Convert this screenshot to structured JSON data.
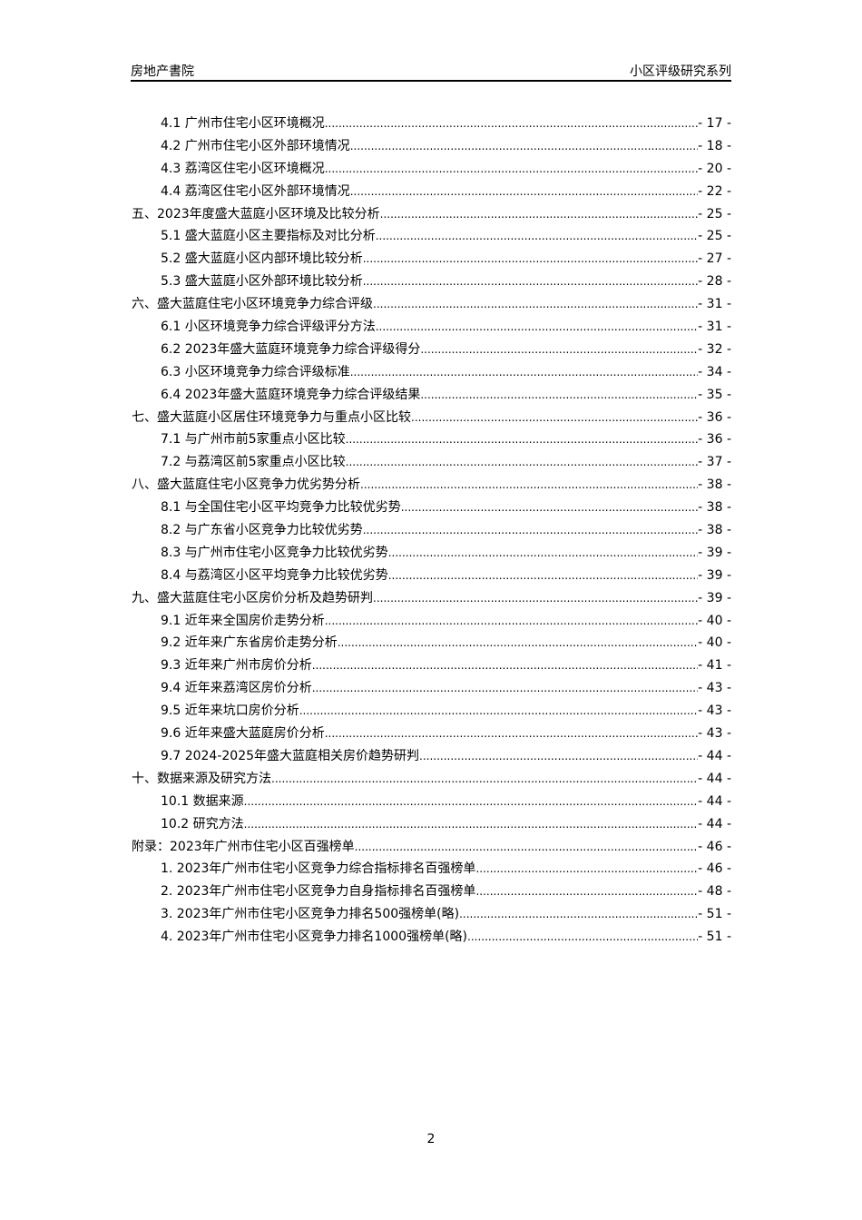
{
  "header": {
    "left": "房地产書院",
    "right": "小区评级研究系列"
  },
  "toc": [
    {
      "level": 2,
      "title": "4.1 广州市住宅小区环境概况",
      "page": "- 17 -"
    },
    {
      "level": 2,
      "title": "4.2 广州市住宅小区外部环境情况",
      "page": "- 18 -"
    },
    {
      "level": 2,
      "title": "4.3 荔湾区住宅小区环境概况",
      "page": "- 20 -"
    },
    {
      "level": 2,
      "title": "4.4 荔湾区住宅小区外部环境情况",
      "page": "- 22 -"
    },
    {
      "level": 1,
      "title": "五、2023年度盛大蓝庭小区环境及比较分析",
      "page": "- 25 -"
    },
    {
      "level": 2,
      "title": "5.1 盛大蓝庭小区主要指标及对比分析",
      "page": "- 25 -"
    },
    {
      "level": 2,
      "title": "5.2 盛大蓝庭小区内部环境比较分析",
      "page": "- 27 -"
    },
    {
      "level": 2,
      "title": "5.3 盛大蓝庭小区外部环境比较分析",
      "page": "- 28 -"
    },
    {
      "level": 1,
      "title": "六、盛大蓝庭住宅小区环境竞争力综合评级",
      "page": "- 31 -"
    },
    {
      "level": 2,
      "title": "6.1 小区环境竞争力综合评级评分方法",
      "page": "- 31 -"
    },
    {
      "level": 2,
      "title": "6.2 2023年盛大蓝庭环境竞争力综合评级得分",
      "page": "- 32 -"
    },
    {
      "level": 2,
      "title": "6.3 小区环境竞争力综合评级标准",
      "page": "- 34 -"
    },
    {
      "level": 2,
      "title": "6.4 2023年盛大蓝庭环境竞争力综合评级结果",
      "page": "- 35 -"
    },
    {
      "level": 1,
      "title": "七、盛大蓝庭小区居住环境竞争力与重点小区比较",
      "page": "- 36 -"
    },
    {
      "level": 2,
      "title": "7.1 与广州市前5家重点小区比较",
      "page": "- 36 -"
    },
    {
      "level": 2,
      "title": "7.2 与荔湾区前5家重点小区比较",
      "page": "- 37 -"
    },
    {
      "level": 1,
      "title": "八、盛大蓝庭住宅小区竞争力优劣势分析",
      "page": "- 38 -"
    },
    {
      "level": 2,
      "title": "8.1 与全国住宅小区平均竞争力比较优劣势",
      "page": "- 38 -"
    },
    {
      "level": 2,
      "title": "8.2 与广东省小区竞争力比较优劣势",
      "page": "- 38 -"
    },
    {
      "level": 2,
      "title": "8.3 与广州市住宅小区竞争力比较优劣势",
      "page": "- 39 -"
    },
    {
      "level": 2,
      "title": "8.4 与荔湾区小区平均竞争力比较优劣势",
      "page": "- 39 -"
    },
    {
      "level": 1,
      "title": "九、盛大蓝庭住宅小区房价分析及趋势研判",
      "page": "- 39 -"
    },
    {
      "level": 2,
      "title": "9.1 近年来全国房价走势分析",
      "page": "- 40 -"
    },
    {
      "level": 2,
      "title": "9.2 近年来广东省房价走势分析",
      "page": "- 40 -"
    },
    {
      "level": 2,
      "title": "9.3 近年来广州市房价分析",
      "page": "- 41 -"
    },
    {
      "level": 2,
      "title": "9.4 近年来荔湾区房价分析",
      "page": "- 43 -"
    },
    {
      "level": 2,
      "title": "9.5 近年来坑口房价分析",
      "page": "- 43 -"
    },
    {
      "level": 2,
      "title": "9.6 近年来盛大蓝庭房价分析",
      "page": "- 43 -"
    },
    {
      "level": 2,
      "title": "9.7 2024-2025年盛大蓝庭相关房价趋势研判",
      "page": "- 44 -"
    },
    {
      "level": 1,
      "title": "十、数据来源及研究方法",
      "page": "- 44 -"
    },
    {
      "level": 2,
      "title": "10.1 数据来源",
      "page": "- 44 -"
    },
    {
      "level": 2,
      "title": "10.2 研究方法",
      "page": "- 44 -"
    },
    {
      "level": 1,
      "title": "附录：2023年广州市住宅小区百强榜单",
      "page": "- 46 -"
    },
    {
      "level": 2,
      "title": "1. 2023年广州市住宅小区竞争力综合指标排名百强榜单",
      "page": "- 46 -"
    },
    {
      "level": 2,
      "title": "2. 2023年广州市住宅小区竞争力自身指标排名百强榜单",
      "page": "- 48 -"
    },
    {
      "level": 2,
      "title": "3. 2023年广州市住宅小区竞争力排名500强榜单(略)",
      "page": "- 51 -"
    },
    {
      "level": 2,
      "title": "4. 2023年广州市住宅小区竞争力排名1000强榜单(略)",
      "page": "- 51 -"
    }
  ],
  "footer": {
    "page_number": "2"
  }
}
